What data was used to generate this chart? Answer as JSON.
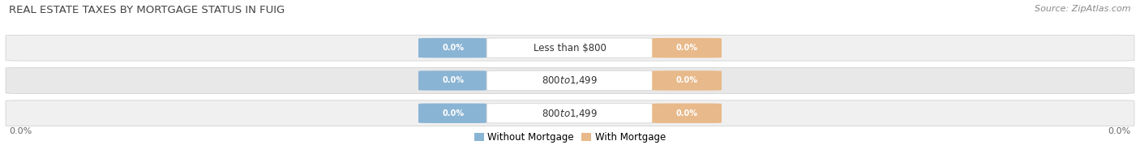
{
  "title": "REAL ESTATE TAXES BY MORTGAGE STATUS IN FUIG",
  "source": "Source: ZipAtlas.com",
  "categories": [
    "Less than $800",
    "$800 to $1,499",
    "$800 to $1,499"
  ],
  "without_mortgage": [
    0.0,
    0.0,
    0.0
  ],
  "with_mortgage": [
    0.0,
    0.0,
    0.0
  ],
  "without_mortgage_color": "#8ab4d4",
  "with_mortgage_color": "#e8b98a",
  "title_fontsize": 9.5,
  "source_fontsize": 8,
  "label_fontsize": 7,
  "category_fontsize": 8.5,
  "legend_fontsize": 8.5,
  "axis_label_fontsize": 8,
  "background_color": "#ffffff",
  "row_bg_even": "#f0f0f0",
  "row_bg_odd": "#e8e8e8",
  "category_bg_color": "#ffffff",
  "legend_without_color": "#8ab4d4",
  "legend_with_color": "#e8b98a"
}
